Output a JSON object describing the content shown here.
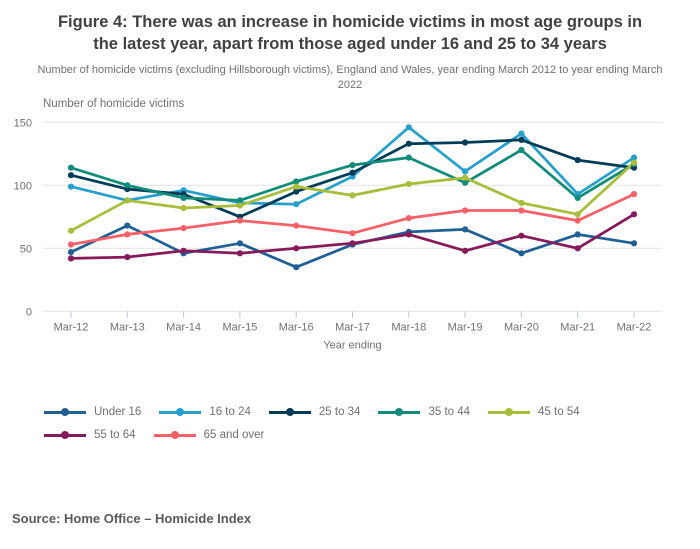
{
  "figure": {
    "title": "Figure 4: There was an increase in homicide victims in most age groups in the latest year, apart from those aged under 16 and 25 to 34 years",
    "subtitle": "Number of homicide victims (excluding Hillsborough victims), England and Wales, year ending March 2012 to year ending March 2022",
    "source": "Source: Home Office – Homicide Index"
  },
  "chart_data": {
    "type": "line",
    "title": "Figure 4: There was an increase in homicide victims in most age groups in the latest year, apart from those aged under 16 and 25 to 34 years",
    "ylabel": "Number of homicide victims",
    "xlabel": "Year ending",
    "categories": [
      "Mar-12",
      "Mar-13",
      "Mar-14",
      "Mar-15",
      "Mar-16",
      "Mar-17",
      "Mar-18",
      "Mar-19",
      "Mar-20",
      "Mar-21",
      "Mar-22"
    ],
    "yticks": [
      0,
      50,
      100,
      150
    ],
    "ylim": [
      0,
      150
    ],
    "grid": true,
    "legend_position": "bottom",
    "marker": "circle",
    "series": [
      {
        "name": "Under 16",
        "color": "#206095",
        "values": [
          47,
          68,
          46,
          54,
          35,
          53,
          63,
          65,
          46,
          61,
          54
        ]
      },
      {
        "name": "16 to 24",
        "color": "#27A0CC",
        "values": [
          99,
          88,
          96,
          86,
          85,
          107,
          146,
          111,
          141,
          93,
          122
        ]
      },
      {
        "name": "25 to 34",
        "color": "#003C57",
        "values": [
          108,
          97,
          93,
          75,
          95,
          110,
          133,
          134,
          136,
          120,
          114
        ]
      },
      {
        "name": "35 to 44",
        "color": "#118C7B",
        "values": [
          114,
          100,
          90,
          88,
          103,
          116,
          122,
          102,
          128,
          90,
          117
        ]
      },
      {
        "name": "45 to 54",
        "color": "#A8BD3A",
        "values": [
          64,
          88,
          82,
          84,
          99,
          92,
          101,
          106,
          86,
          77,
          118
        ]
      },
      {
        "name": "55 to 64",
        "color": "#871A5B",
        "values": [
          42,
          43,
          48,
          46,
          50,
          54,
          61,
          48,
          60,
          50,
          77
        ]
      },
      {
        "name": "65 and over",
        "color": "#F66068",
        "values": [
          53,
          61,
          66,
          72,
          68,
          62,
          74,
          80,
          80,
          72,
          93
        ]
      }
    ]
  },
  "style": {
    "grid_color": "#e2e2e2",
    "tick_color": "#b9c7d6",
    "axis_text_color": "#707071"
  }
}
